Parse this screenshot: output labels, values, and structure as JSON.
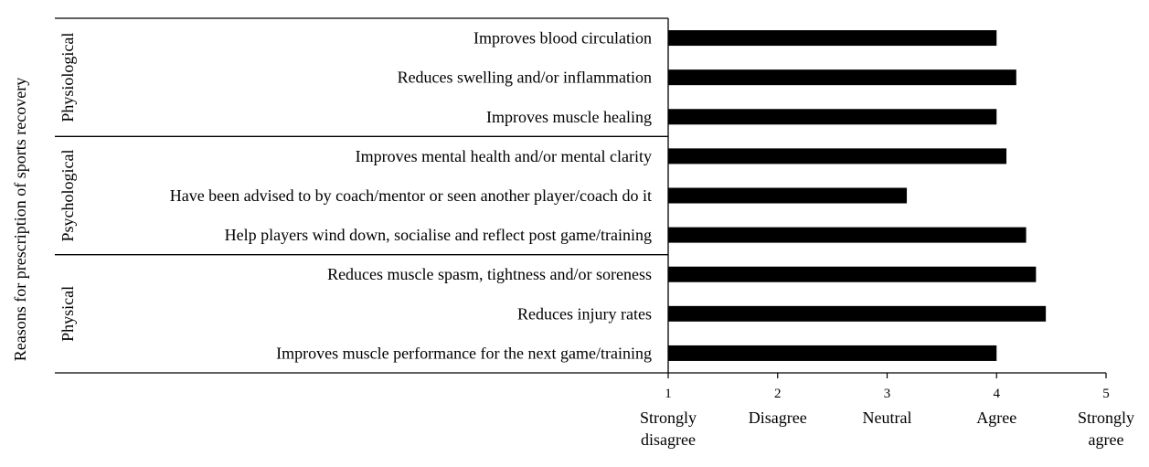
{
  "chart_data": {
    "type": "bar",
    "orientation": "horizontal",
    "ylabel": "Reasons for prescription of sports recovery",
    "groups": [
      {
        "name": "Physiological",
        "categories": [
          "Improves blood circulation",
          "Reduces swelling and/or inflammation",
          "Improves muscle healing"
        ]
      },
      {
        "name": "Psychological",
        "categories": [
          "Improves mental health and/or mental clarity",
          "Have been advised to by coach/mentor or seen another player/coach do it",
          "Help players wind down, socialise and reflect post game/training"
        ]
      },
      {
        "name": "Physical",
        "categories": [
          "Reduces muscle spasm, tightness and/or soreness",
          "Reduces injury rates",
          "Improves muscle performance for the next game/training"
        ]
      }
    ],
    "categories": [
      "Improves blood circulation",
      "Reduces swelling and/or inflammation",
      "Improves muscle healing",
      "Improves mental health and/or mental clarity",
      "Have been advised to by coach/mentor or seen another player/coach do it",
      "Help players wind down, socialise and reflect post game/training",
      "Reduces muscle spasm, tightness and/or soreness",
      "Reduces injury rates",
      "Improves muscle performance for the next game/training"
    ],
    "values": [
      4.0,
      4.18,
      4.0,
      4.09,
      3.18,
      4.27,
      4.36,
      4.45,
      4.0
    ],
    "xlim": [
      1,
      5
    ],
    "xticks": [
      {
        "value": 1,
        "label": "1",
        "word": "Strongly disagree",
        "lines": [
          "Strongly",
          "disagree"
        ]
      },
      {
        "value": 2,
        "label": "2",
        "word": "Disagree",
        "lines": [
          "Disagree"
        ]
      },
      {
        "value": 3,
        "label": "3",
        "word": "Neutral",
        "lines": [
          "Neutral"
        ]
      },
      {
        "value": 4,
        "label": "4",
        "word": "Agree",
        "lines": [
          "Agree"
        ]
      },
      {
        "value": 5,
        "label": "5",
        "word": "Strongly agree",
        "lines": [
          "Strongly",
          "agree"
        ]
      }
    ],
    "bar_color": "#000000",
    "grid": false,
    "legend": "none"
  }
}
